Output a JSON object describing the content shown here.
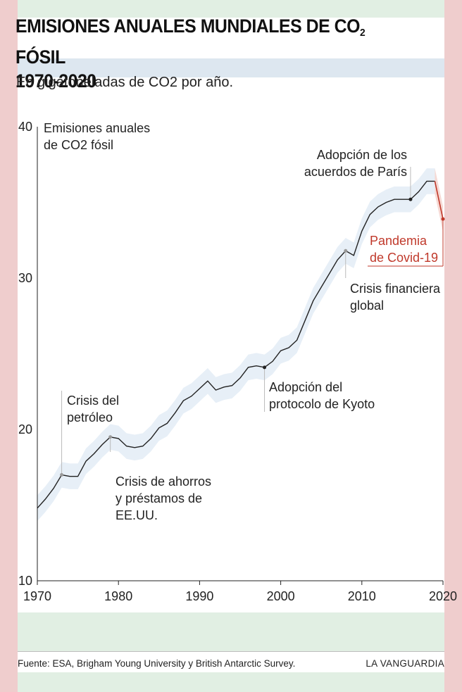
{
  "header": {
    "title_main": "EMISIONES ANUALES MUNDIALES DE CO",
    "title_sub": "2",
    "title_end": " FÓSIL",
    "title_line2": "1970-2020",
    "subtitle": "En gigatoneladas de CO2 por año."
  },
  "footer": {
    "source": "Fuente: ESA, Brigham Young University y British Antarctic Survey.",
    "brand": "LA VANGUARDIA"
  },
  "colors": {
    "line": "#222222",
    "band": "#e7eff7",
    "covid": "#c0392b",
    "covid_band": "#f6d9d4",
    "side_bars": "#efcdcd",
    "band_green": "#e1efe3",
    "band_blue": "#dde7f0"
  },
  "chart_data": {
    "type": "line",
    "xlim": [
      1970,
      2020
    ],
    "ylim": [
      10,
      40
    ],
    "x_ticks": [
      "1970",
      "1980",
      "1990",
      "2000",
      "2010",
      "2020"
    ],
    "y_ticks": [
      "10",
      "20",
      "30",
      "40"
    ],
    "series": [
      {
        "name": "Emisiones anuales de CO2 fósil",
        "x": [
          1970,
          1971,
          1972,
          1973,
          1974,
          1975,
          1976,
          1977,
          1978,
          1979,
          1980,
          1981,
          1982,
          1983,
          1984,
          1985,
          1986,
          1987,
          1988,
          1989,
          1990,
          1991,
          1992,
          1993,
          1994,
          1995,
          1996,
          1997,
          1998,
          1999,
          2000,
          2001,
          2002,
          2003,
          2004,
          2005,
          2006,
          2007,
          2008,
          2009,
          2010,
          2011,
          2012,
          2013,
          2014,
          2015,
          2016,
          2017,
          2018,
          2019,
          2020
        ],
        "y": [
          14.8,
          15.4,
          16.1,
          17.0,
          16.9,
          16.9,
          17.9,
          18.4,
          19.0,
          19.5,
          19.4,
          18.9,
          18.8,
          18.9,
          19.4,
          20.1,
          20.4,
          21.1,
          21.9,
          22.2,
          22.7,
          23.2,
          22.6,
          22.8,
          22.9,
          23.4,
          24.1,
          24.2,
          24.1,
          24.5,
          25.2,
          25.4,
          25.9,
          27.2,
          28.5,
          29.4,
          30.3,
          31.2,
          31.8,
          31.5,
          33.1,
          34.2,
          34.7,
          35.0,
          35.2,
          35.2,
          35.2,
          35.7,
          36.4,
          36.4,
          33.9
        ]
      }
    ],
    "annotations": [
      {
        "year": 1973,
        "value": 17.0,
        "text": [
          "Crisis del",
          "petróleo"
        ]
      },
      {
        "year": 1979,
        "value": 19.5,
        "text": [
          "Crisis de ahorros",
          "y préstamos de",
          "EE.UU."
        ]
      },
      {
        "year": 1998,
        "value": 24.1,
        "text": [
          "Adopción del",
          "protocolo de Kyoto"
        ]
      },
      {
        "year": 2008,
        "value": 31.8,
        "text": [
          "Crisis financiera",
          "global"
        ]
      },
      {
        "year": 2016,
        "value": 35.2,
        "text": [
          "Adopción de los",
          "acuerdos de París"
        ]
      },
      {
        "year": 2020,
        "value": 33.9,
        "text": [
          "Pandemia",
          "de Covid-19"
        ]
      }
    ],
    "series_label": [
      "Emisiones anuales",
      "de CO2 fósil"
    ],
    "grid": false,
    "legend": "none"
  }
}
